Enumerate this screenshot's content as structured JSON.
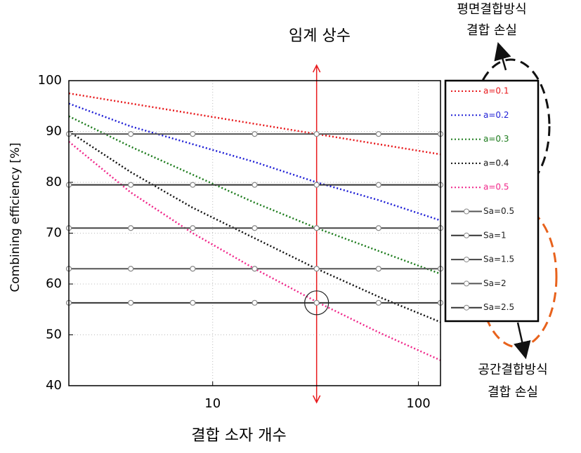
{
  "chart_data": {
    "type": "line",
    "title": "임계 상수",
    "xlabel": "결합 소자 개수",
    "ylabel": "Combining efficiency [%]",
    "xscale": "log",
    "x": [
      2,
      4,
      8,
      16,
      32,
      64,
      128
    ],
    "xlim": [
      2,
      128
    ],
    "xticks": [
      10,
      100
    ],
    "ylim": [
      40,
      100
    ],
    "yticks": [
      40,
      50,
      60,
      70,
      80,
      90,
      100
    ],
    "grid": true,
    "legend": "right",
    "series": [
      {
        "name": "a=0.1",
        "color": "#e8191c",
        "style": "dotted",
        "values": [
          97.5,
          95.5,
          93.5,
          91.5,
          89.5,
          87.5,
          85.5
        ]
      },
      {
        "name": "a=0.2",
        "color": "#1f1fd6",
        "style": "dotted",
        "values": [
          95.5,
          91,
          87.5,
          84,
          80,
          76.5,
          72.5
        ]
      },
      {
        "name": "a=0.3",
        "color": "#1a7a1a",
        "style": "dotted",
        "values": [
          93,
          87,
          81.5,
          76,
          71,
          66.5,
          62
        ]
      },
      {
        "name": "a=0.4",
        "color": "#111111",
        "style": "dotted",
        "values": [
          90,
          82,
          75,
          69,
          63,
          57.5,
          52.5
        ]
      },
      {
        "name": "a=0.5",
        "color": "#f0278a",
        "style": "dotted",
        "values": [
          88,
          78,
          70,
          63,
          56.5,
          50.5,
          45
        ]
      },
      {
        "name": "Sa=0.5",
        "color": "#555555",
        "style": "marker",
        "values": [
          89.5,
          89.5,
          89.5,
          89.5,
          89.5,
          89.5,
          89.5
        ]
      },
      {
        "name": "Sa=1",
        "color": "#333333",
        "style": "marker",
        "values": [
          79.5,
          79.5,
          79.5,
          79.5,
          79.5,
          79.5,
          79.5
        ]
      },
      {
        "name": "Sa=1.5",
        "color": "#444444",
        "style": "marker",
        "values": [
          71,
          71,
          71,
          71,
          71,
          71,
          71
        ]
      },
      {
        "name": "Sa=2",
        "color": "#555555",
        "style": "marker",
        "values": [
          63,
          63,
          63,
          63,
          63,
          63,
          63
        ]
      },
      {
        "name": "Sa=2.5",
        "color": "#333333",
        "style": "marker",
        "values": [
          56.3,
          56.3,
          56.3,
          56.3,
          56.3,
          56.3,
          56.3
        ]
      }
    ],
    "critical_x": 32,
    "annotations": [
      {
        "lines": [
          "평면결합방식",
          "결합 손실"
        ]
      },
      {
        "lines": [
          "공간결합방식",
          "결합 손실"
        ]
      }
    ]
  }
}
